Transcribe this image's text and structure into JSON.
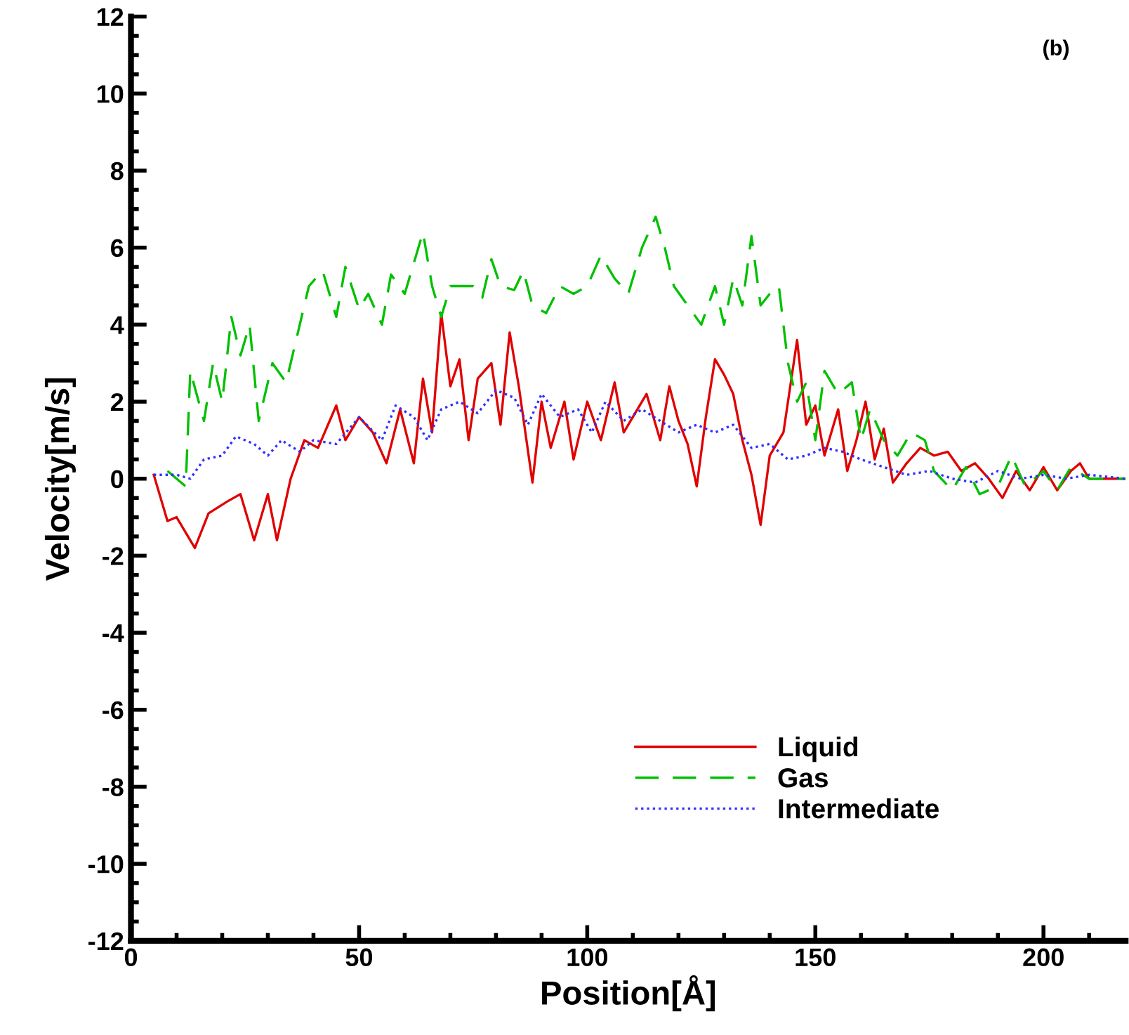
{
  "chart_data": {
    "type": "line",
    "xlabel": "Position[Å]",
    "ylabel": "Velocity[m/s]",
    "annotations": [
      "(b)"
    ],
    "xlim": [
      0,
      218
    ],
    "ylim": [
      -12,
      12
    ],
    "xticks": [
      0,
      50,
      100,
      150,
      200
    ],
    "yticks": [
      -12,
      -10,
      -8,
      -6,
      -4,
      -2,
      0,
      2,
      4,
      6,
      8,
      10,
      12
    ],
    "grid": false,
    "legend": "bottom",
    "marker": "none",
    "series": [
      {
        "name": "Liquid",
        "color": "#e00000",
        "line_style": "solid",
        "x": [
          5,
          8,
          10,
          14,
          17,
          21,
          24,
          27,
          30,
          32,
          35,
          38,
          41,
          45,
          47,
          50,
          53,
          56,
          59,
          62,
          64,
          66,
          68,
          70,
          72,
          74,
          76,
          79,
          81,
          83,
          85,
          88,
          90,
          92,
          95,
          97,
          100,
          103,
          106,
          108,
          110,
          113,
          116,
          118,
          120,
          122,
          124,
          126,
          128,
          130,
          132,
          134,
          136,
          138,
          140,
          143,
          146,
          148,
          150,
          152,
          155,
          157,
          159,
          161,
          163,
          165,
          167,
          170,
          173,
          176,
          179,
          182,
          185,
          188,
          191,
          194,
          197,
          200,
          203,
          206,
          208,
          210,
          218
        ],
        "values": [
          0.1,
          -1.1,
          -1.0,
          -1.8,
          -0.9,
          -0.6,
          -0.4,
          -1.6,
          -0.4,
          -1.6,
          0,
          1.0,
          0.8,
          1.9,
          1.0,
          1.6,
          1.2,
          0.4,
          1.8,
          0.4,
          2.6,
          1.2,
          4.3,
          2.4,
          3.1,
          1.0,
          2.6,
          3.0,
          1.4,
          3.8,
          2.4,
          -0.1,
          2.0,
          0.8,
          2.0,
          0.5,
          2.0,
          1.0,
          2.5,
          1.2,
          1.6,
          2.2,
          1.0,
          2.4,
          1.5,
          0.9,
          -0.2,
          1.6,
          3.1,
          2.7,
          2.2,
          1.0,
          0.1,
          -1.2,
          0.6,
          1.2,
          3.6,
          1.4,
          1.9,
          0.6,
          1.8,
          0.2,
          1.0,
          2.0,
          0.5,
          1.3,
          -0.1,
          0.4,
          0.8,
          0.6,
          0.7,
          0.2,
          0.4,
          0.0,
          -0.5,
          0.2,
          -0.3,
          0.3,
          -0.3,
          0.2,
          0.4,
          0.0,
          0.0
        ]
      },
      {
        "name": "Gas",
        "color": "#00c000",
        "line_style": "dashed",
        "x": [
          8,
          12,
          13,
          16,
          18,
          20,
          22,
          24,
          26,
          28,
          31,
          34,
          37,
          39,
          42,
          45,
          47,
          50,
          52,
          55,
          57,
          60,
          62,
          64,
          66,
          68,
          70,
          73,
          75,
          77,
          79,
          81,
          84,
          86,
          88,
          91,
          94,
          97,
          100,
          103,
          106,
          109,
          112,
          115,
          117,
          119,
          122,
          125,
          128,
          130,
          132,
          134,
          136,
          138,
          140,
          142,
          144,
          146,
          148,
          150,
          152,
          155,
          158,
          160,
          162,
          165,
          168,
          171,
          174,
          176,
          180,
          183,
          186,
          190,
          193,
          196,
          200,
          203,
          206,
          210,
          218
        ],
        "values": [
          0.2,
          -0.2,
          2.8,
          1.5,
          3.0,
          2.0,
          4.2,
          3.2,
          4.0,
          1.5,
          3.0,
          2.5,
          4.0,
          5.0,
          5.4,
          4.2,
          5.5,
          4.4,
          4.8,
          4.0,
          5.3,
          4.8,
          5.6,
          6.4,
          5.0,
          4.2,
          5.0,
          5.0,
          5.0,
          4.7,
          5.7,
          5.0,
          4.9,
          5.4,
          4.5,
          4.3,
          5.0,
          4.8,
          5.0,
          5.8,
          5.2,
          4.8,
          6.0,
          6.8,
          6.0,
          5.0,
          4.5,
          4.0,
          5.0,
          4.0,
          5.2,
          4.5,
          6.3,
          4.5,
          4.8,
          5.0,
          3.0,
          2.0,
          2.5,
          1.0,
          2.8,
          2.2,
          2.5,
          1.0,
          1.8,
          1.0,
          0.6,
          1.2,
          1.0,
          0.2,
          -0.3,
          0.3,
          -0.4,
          -0.2,
          0.6,
          -0.2,
          0.2,
          -0.3,
          0.3,
          0.0,
          0.0
        ]
      },
      {
        "name": "Intermediate",
        "color": "#3030ff",
        "line_style": "dotted",
        "x": [
          5,
          10,
          13,
          16,
          20,
          23,
          27,
          30,
          33,
          37,
          40,
          45,
          50,
          55,
          58,
          62,
          65,
          68,
          72,
          76,
          80,
          84,
          87,
          90,
          94,
          98,
          101,
          104,
          108,
          112,
          116,
          120,
          124,
          128,
          132,
          136,
          140,
          144,
          148,
          152,
          156,
          160,
          165,
          170,
          175,
          180,
          185,
          190,
          195,
          200,
          205,
          210,
          218
        ],
        "values": [
          0.1,
          0.1,
          0.0,
          0.5,
          0.6,
          1.1,
          0.9,
          0.6,
          1.0,
          0.7,
          1.0,
          0.9,
          1.6,
          1.0,
          1.9,
          1.6,
          1.0,
          1.8,
          2.0,
          1.7,
          2.3,
          2.1,
          1.4,
          2.2,
          1.6,
          1.8,
          1.2,
          2.0,
          1.5,
          1.8,
          1.5,
          1.2,
          1.4,
          1.2,
          1.4,
          0.8,
          0.9,
          0.5,
          0.6,
          0.8,
          0.7,
          0.5,
          0.3,
          0.1,
          0.2,
          0.0,
          -0.1,
          0.2,
          0.0,
          0.1,
          0.0,
          0.1,
          0.0
        ]
      }
    ]
  }
}
